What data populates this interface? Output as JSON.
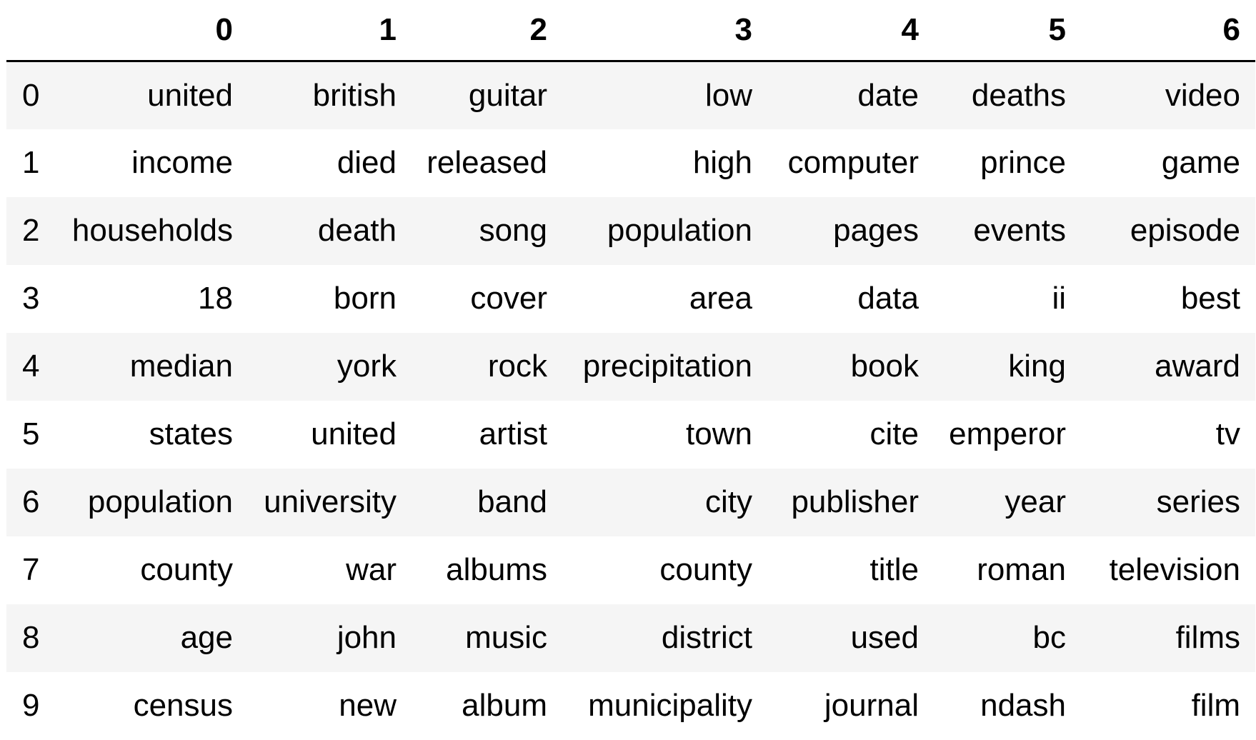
{
  "table": {
    "columns": [
      "0",
      "1",
      "2",
      "3",
      "4",
      "5",
      "6"
    ],
    "rows": [
      {
        "index": "0",
        "cells": [
          "united",
          "british",
          "guitar",
          "low",
          "date",
          "deaths",
          "video"
        ]
      },
      {
        "index": "1",
        "cells": [
          "income",
          "died",
          "released",
          "high",
          "computer",
          "prince",
          "game"
        ]
      },
      {
        "index": "2",
        "cells": [
          "households",
          "death",
          "song",
          "population",
          "pages",
          "events",
          "episode"
        ]
      },
      {
        "index": "3",
        "cells": [
          "18",
          "born",
          "cover",
          "area",
          "data",
          "ii",
          "best"
        ]
      },
      {
        "index": "4",
        "cells": [
          "median",
          "york",
          "rock",
          "precipitation",
          "book",
          "king",
          "award"
        ]
      },
      {
        "index": "5",
        "cells": [
          "states",
          "united",
          "artist",
          "town",
          "cite",
          "emperor",
          "tv"
        ]
      },
      {
        "index": "6",
        "cells": [
          "population",
          "university",
          "band",
          "city",
          "publisher",
          "year",
          "series"
        ]
      },
      {
        "index": "7",
        "cells": [
          "county",
          "war",
          "albums",
          "county",
          "title",
          "roman",
          "television"
        ]
      },
      {
        "index": "8",
        "cells": [
          "age",
          "john",
          "music",
          "district",
          "used",
          "bc",
          "films"
        ]
      },
      {
        "index": "9",
        "cells": [
          "census",
          "new",
          "album",
          "municipality",
          "journal",
          "ndash",
          "film"
        ]
      }
    ]
  },
  "colors": {
    "row_stripe": "#f5f5f5",
    "row_plain": "#ffffff",
    "header_rule": "#000000",
    "text": "#000000"
  }
}
